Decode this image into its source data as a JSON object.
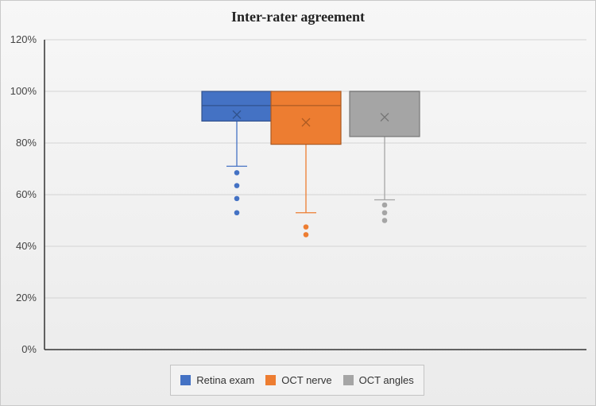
{
  "chart_data": {
    "type": "box",
    "title": "Inter-rater agreement",
    "xlabel": "",
    "ylabel": "",
    "ylim": [
      0,
      120
    ],
    "yticks": [
      "0%",
      "20%",
      "40%",
      "60%",
      "80%",
      "100%",
      "120%"
    ],
    "grid": true,
    "legend_position": "bottom",
    "series": [
      {
        "name": "Retina exam",
        "color": "#4472c4",
        "q1": 88.5,
        "median": 94.5,
        "q3": 100,
        "mean": 91,
        "whisker_low": 71,
        "whisker_high": 100,
        "outliers": [
          68.5,
          63.5,
          58.5,
          53
        ]
      },
      {
        "name": "OCT nerve",
        "color": "#ed7d31",
        "q1": 79.5,
        "median": 94.5,
        "q3": 100,
        "mean": 88,
        "whisker_low": 53,
        "whisker_high": 100,
        "outliers": [
          47.5,
          44.5
        ]
      },
      {
        "name": "OCT angles",
        "color": "#a5a5a5",
        "q1": 82.5,
        "median": 100,
        "q3": 100,
        "mean": 90,
        "whisker_low": 58,
        "whisker_high": 100,
        "outliers": [
          56,
          53,
          50
        ]
      }
    ]
  }
}
